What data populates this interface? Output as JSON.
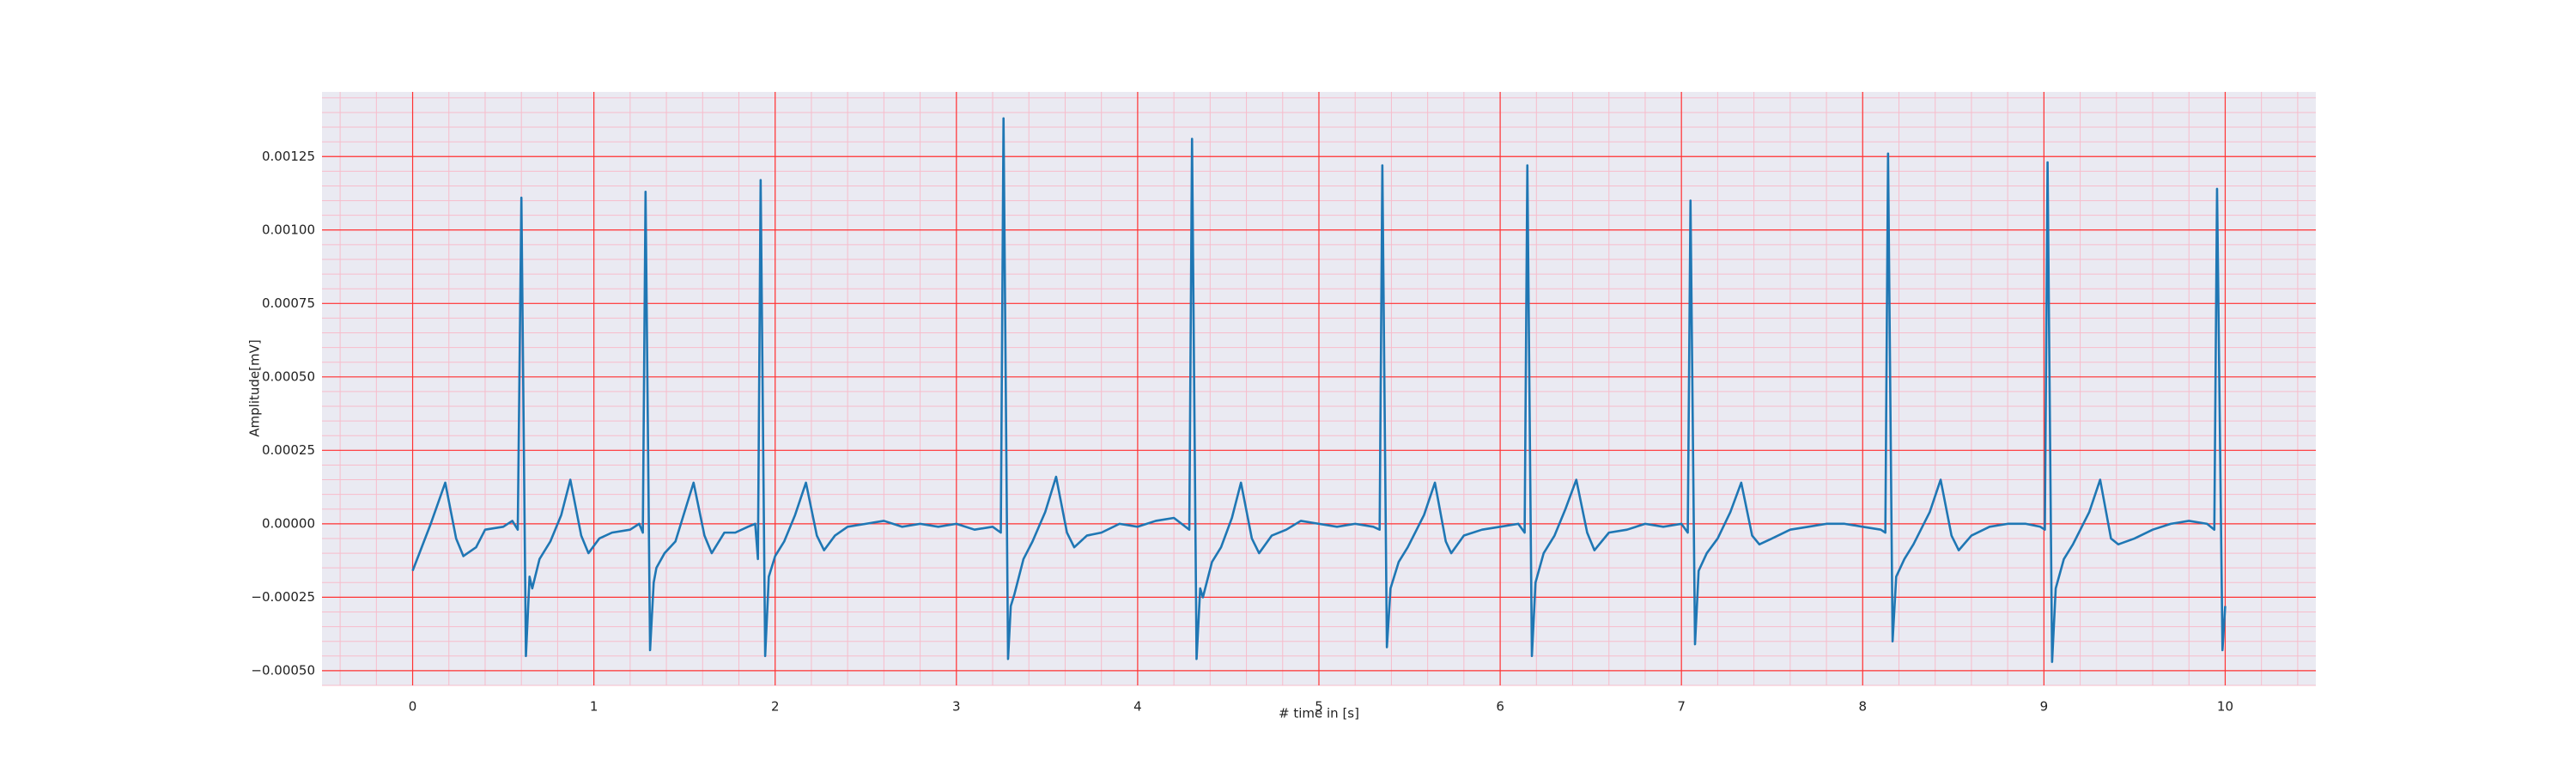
{
  "chart_data": {
    "type": "line",
    "xlabel": "# time in [s]",
    "ylabel": "Amplitude[mV]",
    "color": "#1f77b4",
    "grid": true,
    "grid_color": "#ff3333",
    "minor_grid": true,
    "minor_grid_color": "#f7bccb",
    "background": "#eaeaf2",
    "xlim": [
      -0.5,
      10.5
    ],
    "ylim": [
      -0.00055,
      0.00147
    ],
    "xticks": [
      0,
      1,
      2,
      3,
      4,
      5,
      6,
      7,
      8,
      9,
      10
    ],
    "yticks": [
      {
        "value": -0.0005,
        "label": "−0.00050"
      },
      {
        "value": -0.00025,
        "label": "−0.00025"
      },
      {
        "value": 0,
        "label": "0.00000"
      },
      0.00025,
      {
        "value": 0.0005,
        "label": "0.00050"
      },
      0.00075,
      {
        "value": 0.001,
        "label": "0.00100"
      },
      0.00125
    ],
    "x": [
      0,
      0.05,
      0.1,
      0.18,
      0.24,
      0.28,
      0.35,
      0.4,
      0.5,
      0.55,
      0.58,
      0.6,
      0.625,
      0.645,
      0.66,
      0.7,
      0.76,
      0.82,
      0.87,
      0.93,
      0.97,
      1.03,
      1.1,
      1.2,
      1.25,
      1.27,
      1.285,
      1.31,
      1.33,
      1.345,
      1.39,
      1.45,
      1.5,
      1.55,
      1.61,
      1.65,
      1.72,
      1.78,
      1.85,
      1.89,
      1.905,
      1.92,
      1.945,
      1.965,
      2,
      2.05,
      2.11,
      2.17,
      2.23,
      2.27,
      2.33,
      2.4,
      2.5,
      2.6,
      2.7,
      2.8,
      2.9,
      3,
      3.1,
      3.2,
      3.245,
      3.26,
      3.285,
      3.3,
      3.32,
      3.37,
      3.42,
      3.49,
      3.55,
      3.61,
      3.65,
      3.72,
      3.8,
      3.9,
      4,
      4.1,
      4.2,
      4.285,
      4.3,
      4.325,
      4.345,
      4.36,
      4.41,
      4.46,
      4.52,
      4.57,
      4.63,
      4.67,
      4.74,
      4.82,
      4.9,
      5,
      5.1,
      5.2,
      5.3,
      5.335,
      5.35,
      5.375,
      5.395,
      5.44,
      5.49,
      5.58,
      5.64,
      5.7,
      5.73,
      5.8,
      5.9,
      6,
      6.1,
      6.135,
      6.15,
      6.175,
      6.195,
      6.24,
      6.3,
      6.36,
      6.42,
      6.48,
      6.52,
      6.6,
      6.7,
      6.8,
      6.9,
      7,
      7.035,
      7.05,
      7.075,
      7.095,
      7.14,
      7.2,
      7.27,
      7.33,
      7.39,
      7.43,
      7.5,
      7.6,
      7.7,
      7.8,
      7.9,
      8,
      8.1,
      8.125,
      8.14,
      8.165,
      8.185,
      8.23,
      8.28,
      8.37,
      8.43,
      8.49,
      8.53,
      8.6,
      8.7,
      8.8,
      8.9,
      8.98,
      9.005,
      9.02,
      9.045,
      9.065,
      9.11,
      9.16,
      9.25,
      9.31,
      9.37,
      9.41,
      9.5,
      9.6,
      9.7,
      9.8,
      9.9,
      9.94,
      9.955,
      9.985,
      10
    ],
    "values": [
      -0.00016,
      -8e-05,
      0,
      0.00014,
      -5e-05,
      -0.00011,
      -8e-05,
      -2e-05,
      -1e-05,
      1e-05,
      -2e-05,
      0.00111,
      -0.00045,
      -0.00018,
      -0.00022,
      -0.00012,
      -6e-05,
      3e-05,
      0.00015,
      -4e-05,
      -0.0001,
      -5e-05,
      -3e-05,
      -2e-05,
      0,
      -3e-05,
      0.00113,
      -0.00043,
      -0.0002,
      -0.00015,
      -0.0001,
      -6e-05,
      4e-05,
      0.00014,
      -4e-05,
      -0.0001,
      -3e-05,
      -3e-05,
      -1e-05,
      0,
      -0.00012,
      0.00117,
      -0.00045,
      -0.00018,
      -0.00011,
      -6e-05,
      3e-05,
      0.00014,
      -4e-05,
      -9e-05,
      -4e-05,
      -1e-05,
      0,
      1e-05,
      -1e-05,
      0,
      -1e-05,
      0,
      -2e-05,
      -1e-05,
      -3e-05,
      0.00138,
      -0.00046,
      -0.00028,
      -0.00024,
      -0.00012,
      -6e-05,
      4e-05,
      0.00016,
      -3e-05,
      -8e-05,
      -4e-05,
      -3e-05,
      0,
      -1e-05,
      1e-05,
      2e-05,
      -2e-05,
      0.00131,
      -0.00046,
      -0.00022,
      -0.00025,
      -0.00013,
      -8e-05,
      2e-05,
      0.00014,
      -5e-05,
      -0.0001,
      -4e-05,
      -2e-05,
      1e-05,
      0,
      -1e-05,
      0,
      -1e-05,
      -2e-05,
      0.00122,
      -0.00042,
      -0.00022,
      -0.00013,
      -8e-05,
      3e-05,
      0.00014,
      -6e-05,
      -0.0001,
      -4e-05,
      -2e-05,
      -1e-05,
      0,
      -3e-05,
      0.00122,
      -0.00045,
      -0.0002,
      -0.0001,
      -4e-05,
      5e-05,
      0.00015,
      -3e-05,
      -9e-05,
      -3e-05,
      -2e-05,
      0,
      -1e-05,
      0,
      -3e-05,
      0.0011,
      -0.00041,
      -0.00016,
      -0.0001,
      -5e-05,
      4e-05,
      0.00014,
      -4e-05,
      -7e-05,
      -5e-05,
      -2e-05,
      -1e-05,
      0,
      0,
      -1e-05,
      -2e-05,
      -3e-05,
      0.00126,
      -0.0004,
      -0.00018,
      -0.00012,
      -7e-05,
      4e-05,
      0.00015,
      -4e-05,
      -9e-05,
      -4e-05,
      -1e-05,
      0,
      0,
      -1e-05,
      -2e-05,
      0.00123,
      -0.00047,
      -0.00022,
      -0.00012,
      -7e-05,
      4e-05,
      0.00015,
      -5e-05,
      -7e-05,
      -5e-05,
      -2e-05,
      0,
      1e-05,
      0,
      -2e-05,
      0.00114,
      -0.00043,
      -0.00028
    ]
  }
}
